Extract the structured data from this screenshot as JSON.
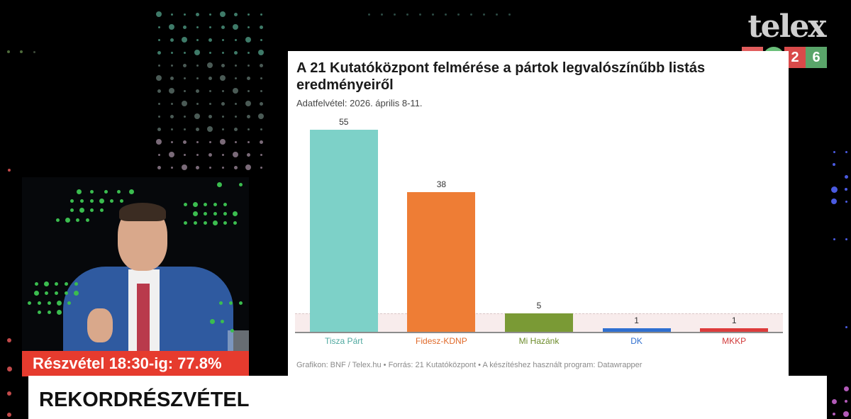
{
  "logo": {
    "word": "telex",
    "tiles": [
      "2",
      "X",
      "2",
      "6"
    ]
  },
  "chart_panel": {
    "title": "A 21 Kutatóközpont felmérése a pártok legvalószínűbb listás eredményeiről",
    "subtitle": "Adatfelvétel: 2026. április 8-11.",
    "footer": "Grafikon: BNF / Telex.hu • Forrás: 21 Kutatóközpont • A készítéshez használt program: Datawrapper"
  },
  "chart_data": {
    "type": "bar",
    "title": "A 21 Kutatóközpont felmérése a pártok legvalószínűbb listás eredményeiről",
    "subtitle": "Adatfelvétel: 2026. április 8-11.",
    "categories": [
      "Tisza Párt",
      "Fidesz-KDNP",
      "Mi Hazánk",
      "DK",
      "MKKP"
    ],
    "values": [
      55,
      38,
      5,
      1,
      1
    ],
    "colors": [
      "#7dd1c8",
      "#ee7d35",
      "#7a9a35",
      "#2f6fd0",
      "#dd3b3b"
    ],
    "label_colors": [
      "#4fa9a0",
      "#e06a2a",
      "#6d8c2c",
      "#2f6fd0",
      "#d23a3a"
    ],
    "threshold_band": 5,
    "xlabel": "",
    "ylabel": "",
    "ylim": [
      0,
      55
    ],
    "grid": false,
    "source": "Grafikon: BNF / Telex.hu • Forrás: 21 Kutatóközpont • A készítéshez használt program: Datawrapper"
  },
  "ticker": {
    "turnout_label": "Részvétel 18:30-ig: 77.8%"
  },
  "lower_third": {
    "headline": "REKORDRÉSZVÉTEL"
  }
}
